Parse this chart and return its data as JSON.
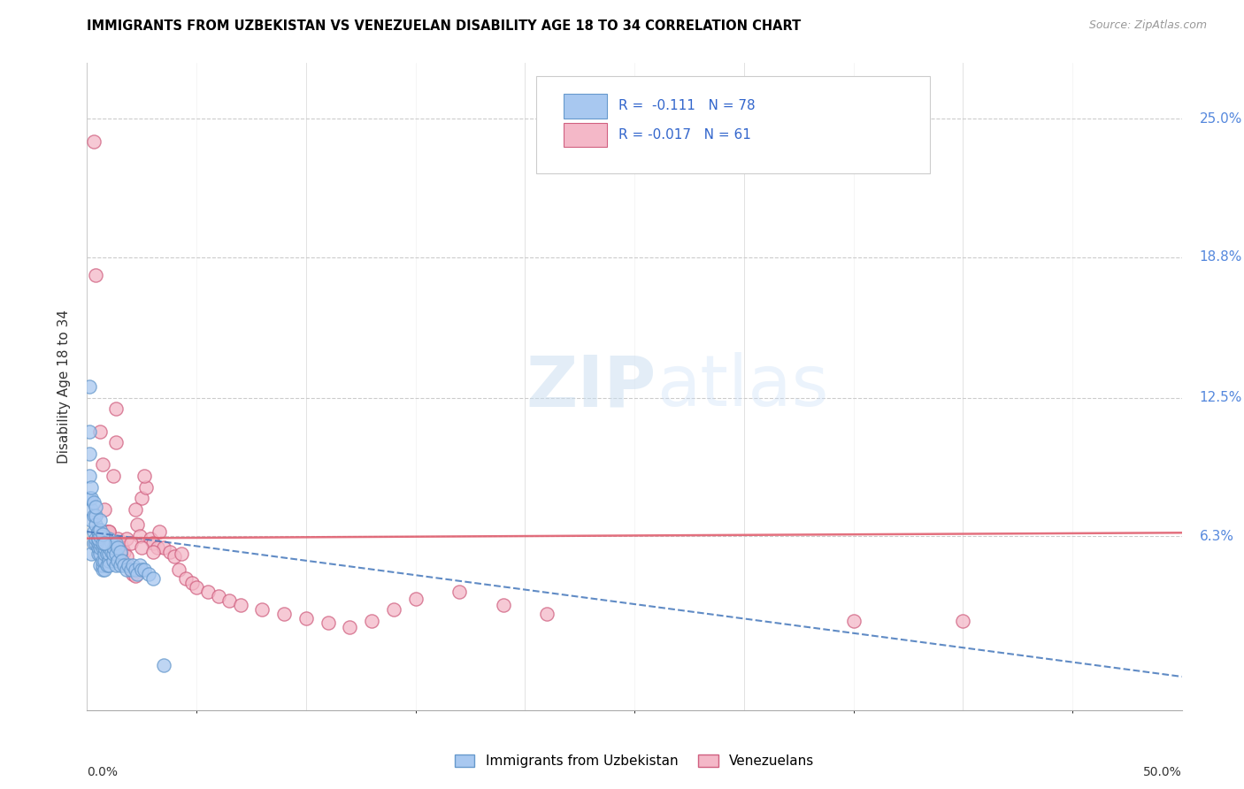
{
  "title": "IMMIGRANTS FROM UZBEKISTAN VS VENEZUELAN DISABILITY AGE 18 TO 34 CORRELATION CHART",
  "source": "Source: ZipAtlas.com",
  "ylabel": "Disability Age 18 to 34",
  "ytick_labels": [
    "6.3%",
    "12.5%",
    "18.8%",
    "25.0%"
  ],
  "ytick_values": [
    6.3,
    12.5,
    18.8,
    25.0
  ],
  "xlim": [
    0.0,
    50.0
  ],
  "ylim": [
    -1.5,
    27.5
  ],
  "legend_r_blue": "-0.111",
  "legend_n_blue": "78",
  "legend_r_pink": "-0.017",
  "legend_n_pink": "61",
  "blue_color": "#a8c8f0",
  "blue_edge_color": "#6699cc",
  "pink_color": "#f4b8c8",
  "pink_edge_color": "#d06080",
  "blue_line_color": "#4477bb",
  "pink_line_color": "#e06070",
  "watermark_color": "#d8e8f8",
  "blue_scatter_x": [
    0.2,
    0.3,
    0.3,
    0.4,
    0.4,
    0.5,
    0.5,
    0.5,
    0.5,
    0.5,
    0.6,
    0.6,
    0.6,
    0.6,
    0.7,
    0.7,
    0.7,
    0.7,
    0.8,
    0.8,
    0.8,
    0.8,
    0.9,
    0.9,
    0.9,
    1.0,
    1.0,
    1.0,
    1.0,
    1.0,
    1.1,
    1.1,
    1.2,
    1.2,
    1.2,
    1.3,
    1.3,
    1.3,
    1.4,
    1.4,
    1.5,
    1.5,
    1.6,
    1.7,
    1.8,
    1.9,
    2.0,
    2.1,
    2.2,
    2.3,
    2.4,
    2.5,
    2.6,
    2.8,
    3.0,
    0.1,
    0.1,
    0.1,
    0.1,
    0.2,
    0.2,
    0.2,
    0.2,
    0.3,
    0.3,
    0.4,
    0.4,
    0.4,
    0.5,
    0.5,
    0.6,
    0.6,
    0.6,
    0.7,
    0.7,
    0.8,
    3.5,
    0.1
  ],
  "blue_scatter_y": [
    5.5,
    6.0,
    6.5,
    6.0,
    6.2,
    5.5,
    5.8,
    6.0,
    6.2,
    6.5,
    5.0,
    5.5,
    5.8,
    6.0,
    4.8,
    5.0,
    5.2,
    5.8,
    4.8,
    5.2,
    5.5,
    5.8,
    5.0,
    5.5,
    6.0,
    5.2,
    5.5,
    5.8,
    6.2,
    5.0,
    5.6,
    6.0,
    5.2,
    5.5,
    5.8,
    5.0,
    5.5,
    6.0,
    5.2,
    5.8,
    5.0,
    5.6,
    5.2,
    5.0,
    4.8,
    5.0,
    4.8,
    5.0,
    4.8,
    4.6,
    5.0,
    4.8,
    4.8,
    4.6,
    4.4,
    8.0,
    9.0,
    10.0,
    11.0,
    7.0,
    7.5,
    8.0,
    8.5,
    7.2,
    7.8,
    6.8,
    7.2,
    7.6,
    6.5,
    6.2,
    6.3,
    6.6,
    7.0,
    6.0,
    6.4,
    6.0,
    0.5,
    13.0
  ],
  "pink_scatter_x": [
    0.3,
    0.4,
    0.6,
    0.7,
    0.8,
    0.9,
    1.0,
    1.2,
    1.4,
    1.5,
    1.6,
    1.7,
    1.8,
    2.0,
    2.1,
    2.2,
    2.3,
    2.4,
    2.5,
    2.7,
    2.9,
    3.0,
    3.2,
    3.5,
    3.8,
    4.0,
    4.2,
    4.5,
    4.8,
    5.0,
    5.5,
    6.0,
    6.5,
    7.0,
    8.0,
    9.0,
    10.0,
    11.0,
    12.0,
    13.0,
    14.0,
    15.0,
    17.0,
    19.0,
    21.0,
    0.8,
    1.0,
    1.2,
    1.3,
    1.5,
    1.8,
    2.0,
    2.5,
    3.0,
    35.0,
    40.0,
    1.3,
    2.2,
    2.6,
    3.3,
    4.3
  ],
  "pink_scatter_y": [
    24.0,
    18.0,
    11.0,
    9.5,
    7.5,
    6.5,
    6.5,
    9.0,
    6.2,
    6.0,
    5.8,
    5.6,
    5.4,
    4.8,
    4.6,
    4.5,
    6.8,
    6.3,
    8.0,
    8.5,
    6.2,
    6.0,
    5.8,
    5.8,
    5.6,
    5.4,
    4.8,
    4.4,
    4.2,
    4.0,
    3.8,
    3.6,
    3.4,
    3.2,
    3.0,
    2.8,
    2.6,
    2.4,
    2.2,
    2.5,
    3.0,
    3.5,
    3.8,
    3.2,
    2.8,
    6.3,
    6.5,
    6.0,
    12.0,
    5.5,
    6.2,
    6.0,
    5.8,
    5.6,
    2.5,
    2.5,
    10.5,
    7.5,
    9.0,
    6.5,
    5.5
  ],
  "xtick_positions": [
    0,
    10,
    20,
    30,
    40,
    50
  ],
  "xtick_minor_positions": [
    5,
    15,
    25,
    35,
    45
  ]
}
